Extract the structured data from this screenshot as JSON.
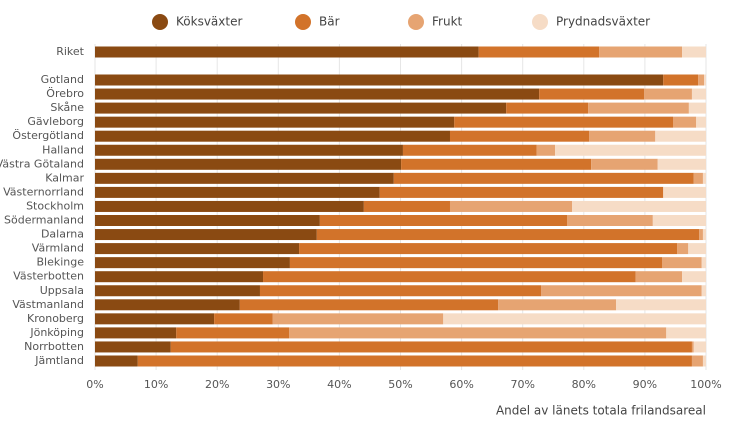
{
  "chart_data": {
    "type": "stacked-barh",
    "x_label": "Andel av länets totala frilandsareal",
    "categories": [
      "Riket",
      "Gotland",
      "Örebro",
      "Skåne",
      "Gävleborg",
      "Östergötland",
      "Halland",
      "Västra Götaland",
      "Kalmar",
      "Västernorrland",
      "Stockholm",
      "Södermanland",
      "Dalarna",
      "Värmland",
      "Blekinge",
      "Västerbotten",
      "Uppsala",
      "Västmanland",
      "Kronoberg",
      "Jönköping",
      "Norrbotten",
      "Jämtland"
    ],
    "series": [
      {
        "name": "Köksväxter",
        "color": "#8a4a12",
        "values": [
          62.8,
          93.0,
          72.7,
          67.3,
          58.8,
          58.1,
          50.4,
          50.1,
          48.9,
          46.6,
          44.0,
          36.8,
          36.3,
          33.4,
          31.9,
          27.5,
          27.0,
          23.7,
          19.5,
          13.3,
          12.4,
          7.0
        ]
      },
      {
        "name": "Bär",
        "color": "#d2732a",
        "values": [
          19.7,
          5.7,
          17.2,
          13.4,
          35.8,
          22.8,
          21.9,
          31.1,
          49.1,
          46.4,
          14.1,
          40.5,
          62.6,
          61.9,
          60.9,
          61.0,
          46.0,
          42.3,
          9.6,
          18.5,
          85.3,
          90.7
        ]
      },
      {
        "name": "Frukt",
        "color": "#e6a472",
        "values": [
          13.6,
          1.0,
          7.8,
          16.5,
          3.8,
          10.8,
          3.0,
          10.9,
          1.5,
          0,
          20.0,
          14.0,
          0.6,
          1.8,
          6.5,
          7.6,
          26.3,
          19.3,
          27.9,
          61.7,
          0.3,
          1.8
        ]
      },
      {
        "name": "Prydnadsväxter",
        "color": "#f6dcc6",
        "values": [
          3.9,
          0.3,
          2.3,
          2.8,
          1.6,
          8.3,
          24.7,
          7.9,
          0.5,
          7.0,
          21.9,
          8.7,
          0.5,
          2.9,
          0.7,
          3.9,
          0.7,
          14.7,
          43.0,
          6.5,
          2.0,
          0.5
        ]
      }
    ],
    "xlim": [
      0,
      100
    ],
    "xticks": [
      {
        "value": 0,
        "label": "0%"
      },
      {
        "value": 10,
        "label": "10%"
      },
      {
        "value": 20,
        "label": "20%"
      },
      {
        "value": 30,
        "label": "30%"
      },
      {
        "value": 40,
        "label": "40%"
      },
      {
        "value": 50,
        "label": "50%"
      },
      {
        "value": 60,
        "label": "60%"
      },
      {
        "value": 70,
        "label": "70%"
      },
      {
        "value": 80,
        "label": "80%"
      },
      {
        "value": 90,
        "label": "90%"
      },
      {
        "value": 100,
        "label": "100%"
      }
    ],
    "grid": true
  }
}
